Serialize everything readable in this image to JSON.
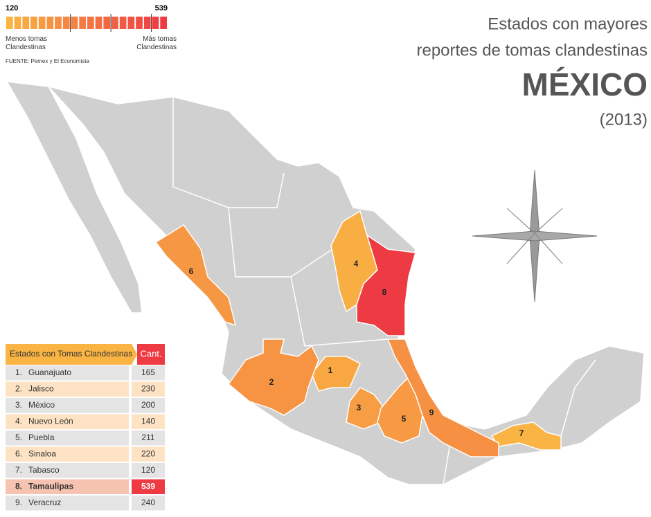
{
  "legend": {
    "min": 120,
    "max": 539,
    "low_label": "Menos tomas Clandestinas",
    "high_label": "Más tomas Clandestinas",
    "low_color": "#f9b443",
    "high_color": "#ee3b43"
  },
  "source": "FUENTE: Pemex y El Economista",
  "header": {
    "line1": "Estados con mayores",
    "line2": "reportes de tomas clandestinas",
    "country": "MÉXICO",
    "year": "(2013)"
  },
  "table": {
    "title": "Estados con Tomas Clandestinas",
    "value_header": "Cant.",
    "rows": [
      {
        "index": "1.",
        "name": "Guanajuato",
        "value": 165,
        "map_label": "1"
      },
      {
        "index": "2.",
        "name": "Jalisco",
        "value": 230,
        "map_label": "2"
      },
      {
        "index": "3.",
        "name": "México",
        "value": 200,
        "map_label": "3"
      },
      {
        "index": "4.",
        "name": "Nuevo León",
        "value": 140,
        "map_label": "4"
      },
      {
        "index": "5.",
        "name": "Puebla",
        "value": 211,
        "map_label": "5"
      },
      {
        "index": "6.",
        "name": "Sinaloa",
        "value": 220,
        "map_label": "6"
      },
      {
        "index": "7.",
        "name": "Tabasco",
        "value": 120,
        "map_label": "7"
      },
      {
        "index": "8.",
        "name": "Tamaulipas",
        "value": 539,
        "map_label": "8",
        "highlight": true
      },
      {
        "index": "9.",
        "name": "Veracruz",
        "value": 240,
        "map_label": "9"
      }
    ]
  }
}
